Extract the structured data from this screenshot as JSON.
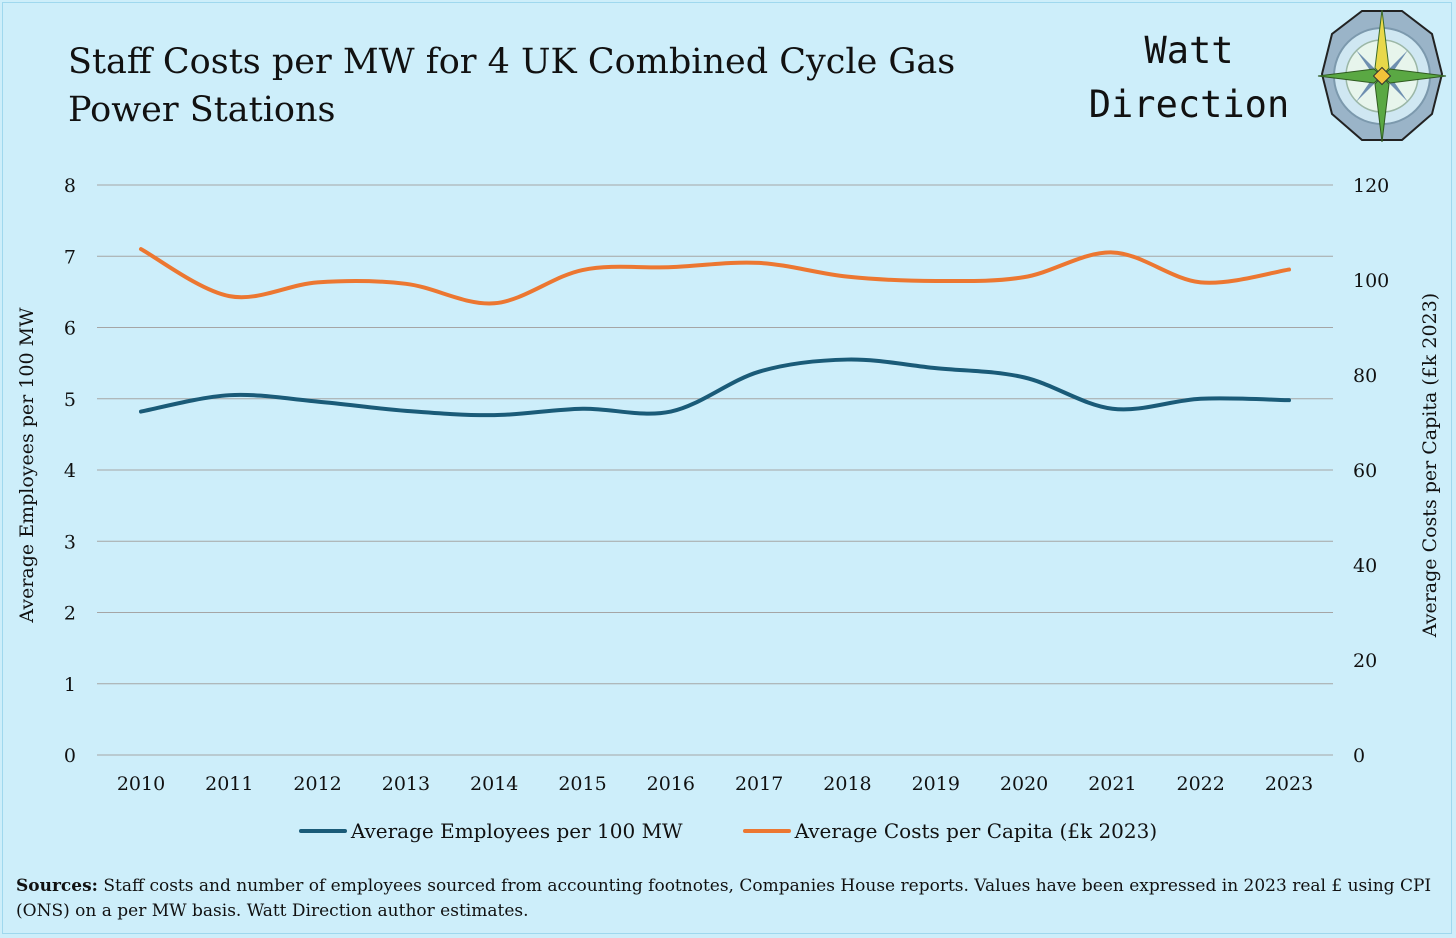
{
  "title": "Staff Costs per MW for 4 UK Combined Cycle Gas Power Stations",
  "brand": {
    "line1": "Watt",
    "line2": "Direction",
    "logo_icon": "compass-rose-icon"
  },
  "chart_data": {
    "type": "line",
    "x": [
      2010,
      2011,
      2012,
      2013,
      2014,
      2015,
      2016,
      2017,
      2018,
      2019,
      2020,
      2021,
      2022,
      2023
    ],
    "x_tick_labels": [
      "2010",
      "2011",
      "2012",
      "2013",
      "2014",
      "2015",
      "2016",
      "2017",
      "2018",
      "2019",
      "2020",
      "2021",
      "2022",
      "2023"
    ],
    "ylabel_left": "Average Employees per 100 MW",
    "ylabel_right": "Average Costs per Capita (£k 2023)",
    "ylim_left": [
      0,
      8
    ],
    "ylim_right": [
      0,
      120
    ],
    "yticks_left": [
      "0",
      "1",
      "2",
      "3",
      "4",
      "5",
      "6",
      "7",
      "8"
    ],
    "yticks_right": [
      "0",
      "20",
      "40",
      "60",
      "80",
      "100",
      "120"
    ],
    "grid": true,
    "legend_position": "bottom",
    "series": [
      {
        "name": "Average Employees per 100 MW",
        "axis": "left",
        "color": "#1a5b78",
        "values": [
          4.82,
          5.05,
          4.96,
          4.83,
          4.77,
          4.86,
          4.82,
          5.38,
          5.55,
          5.43,
          5.3,
          4.86,
          5.0,
          4.98
        ]
      },
      {
        "name": "Average Costs per Capita (£k 2023)",
        "axis": "right",
        "color": "#ec7731",
        "values": [
          106.5,
          96.6,
          99.5,
          99.2,
          95.1,
          102.1,
          102.7,
          103.6,
          100.7,
          99.8,
          100.6,
          105.8,
          99.5,
          102.2
        ]
      }
    ]
  },
  "sources": {
    "label": "Sources:",
    "text": " Staff costs and number of employees sourced from accounting footnotes, Companies House reports. Values have been expressed in 2023 real £ using CPI (ONS) on a per MW basis. Watt Direction author estimates."
  }
}
